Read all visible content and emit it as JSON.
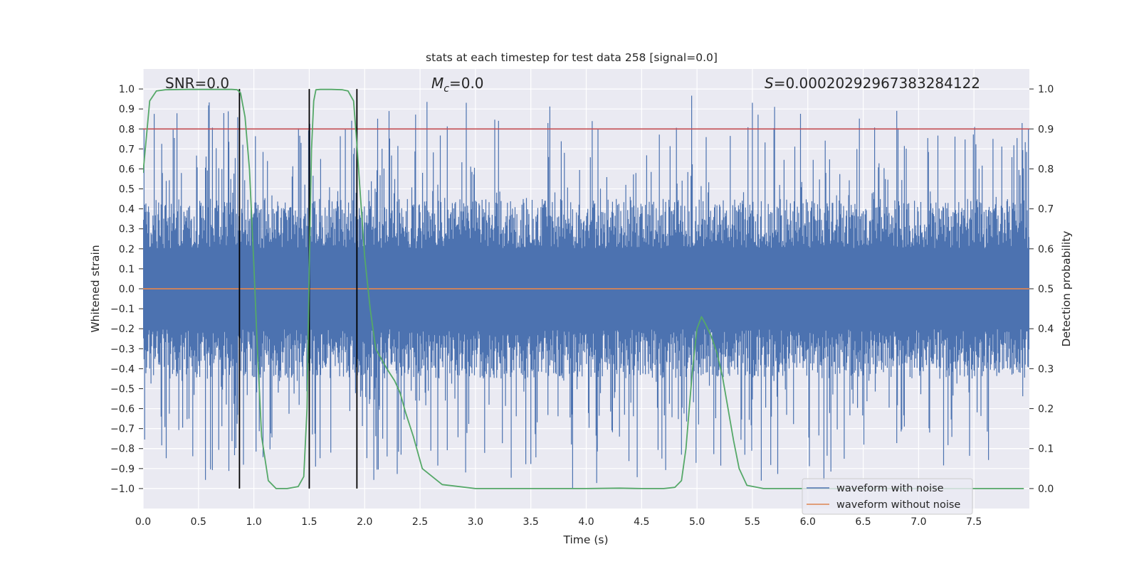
{
  "chart_data": {
    "type": "line",
    "title": "stats at each timestep for test data 258 [signal=0.0]",
    "xlabel": "Time (s)",
    "ylabel": "Whitened strain",
    "y2label": "Detection probability",
    "xlim": [
      0.0,
      8.0
    ],
    "ylim": [
      -1.1,
      1.1
    ],
    "y2lim": [
      -0.05,
      1.05
    ],
    "x_ticks": [
      0.0,
      0.5,
      1.0,
      1.5,
      2.0,
      2.5,
      3.0,
      3.5,
      4.0,
      4.5,
      5.0,
      5.5,
      6.0,
      6.5,
      7.0,
      7.5
    ],
    "x_tick_labels": [
      "0.0",
      "0.5",
      "1.0",
      "1.5",
      "2.0",
      "2.5",
      "3.0",
      "3.5",
      "4.0",
      "4.5",
      "5.0",
      "5.5",
      "6.0",
      "6.5",
      "7.0",
      "7.5"
    ],
    "y_ticks": [
      1.0,
      0.9,
      0.8,
      0.7,
      0.6,
      0.5,
      0.4,
      0.3,
      0.2,
      0.1,
      0.0,
      -0.1,
      -0.2,
      -0.3,
      -0.4,
      -0.5,
      -0.6,
      -0.7,
      -0.8,
      -0.9,
      -1.0
    ],
    "y_tick_labels": [
      "1.0",
      "0.9",
      "0.8",
      "0.7",
      "0.6",
      "0.5",
      "0.4",
      "0.3",
      "0.2",
      "0.1",
      "0.0",
      "−0.1",
      "−0.2",
      "−0.3",
      "−0.4",
      "−0.5",
      "−0.6",
      "−0.7",
      "−0.8",
      "−0.9",
      "−1.0"
    ],
    "y2_ticks": [
      1.0,
      0.9,
      0.8,
      0.7,
      0.6,
      0.5,
      0.4,
      0.3,
      0.2,
      0.1,
      0.0
    ],
    "y2_tick_labels": [
      "1.0",
      "0.9",
      "0.8",
      "0.7",
      "0.6",
      "0.5",
      "0.4",
      "0.3",
      "0.2",
      "0.1",
      "0.0"
    ],
    "annotations": {
      "snr": "SNR=0.0",
      "mc_symbol": "M",
      "mc_sub": "c",
      "mc_value": "=0.0",
      "s_symbol": "S",
      "s_value": "=0.00020292967383284122"
    },
    "threshold": {
      "y2": 0.9,
      "color": "#c44e52"
    },
    "vlines_x": [
      0.87,
      1.5,
      1.93
    ],
    "noise_band": {
      "pos_envelope": 0.45,
      "neg_envelope": -0.45,
      "peak_max": 0.98,
      "peak_min": -1.0
    },
    "series": [
      {
        "name": "waveform with noise",
        "color": "#4c72b0",
        "axis": "left"
      },
      {
        "name": "waveform without noise",
        "color": "#dd8452",
        "axis": "left",
        "constant": 0.0
      },
      {
        "name": "detection probability",
        "color": "#55a868",
        "axis": "right",
        "x": [
          0.0,
          0.06,
          0.12,
          0.2,
          0.4,
          0.6,
          0.8,
          0.85,
          0.88,
          0.92,
          0.96,
          1.0,
          1.03,
          1.07,
          1.13,
          1.2,
          1.3,
          1.4,
          1.45,
          1.48,
          1.5,
          1.52,
          1.54,
          1.56,
          1.6,
          1.7,
          1.8,
          1.85,
          1.9,
          1.93,
          1.96,
          2.0,
          2.05,
          2.1,
          2.2,
          2.27,
          2.32,
          2.37,
          2.44,
          2.52,
          2.7,
          3.0,
          3.5,
          4.0,
          4.3,
          4.5,
          4.7,
          4.8,
          4.86,
          4.9,
          4.93,
          4.96,
          5.0,
          5.04,
          5.08,
          5.13,
          5.18,
          5.23,
          5.28,
          5.33,
          5.38,
          5.45,
          5.6,
          6.0,
          7.0,
          7.95
        ],
        "y": [
          0.79,
          0.97,
          0.995,
          0.998,
          0.999,
          0.999,
          0.999,
          0.998,
          0.99,
          0.93,
          0.8,
          0.56,
          0.36,
          0.13,
          0.02,
          0.0,
          0.0,
          0.005,
          0.03,
          0.2,
          0.55,
          0.85,
          0.97,
          0.998,
          0.999,
          0.999,
          0.998,
          0.995,
          0.97,
          0.86,
          0.74,
          0.58,
          0.45,
          0.35,
          0.3,
          0.27,
          0.24,
          0.19,
          0.13,
          0.05,
          0.01,
          0.0,
          0.0,
          0.0,
          0.001,
          0.0,
          0.0,
          0.003,
          0.02,
          0.1,
          0.2,
          0.3,
          0.4,
          0.43,
          0.41,
          0.38,
          0.34,
          0.28,
          0.2,
          0.12,
          0.05,
          0.008,
          0.0,
          0.0,
          0.0,
          0.0
        ]
      }
    ],
    "legend_position": "lower-right"
  }
}
